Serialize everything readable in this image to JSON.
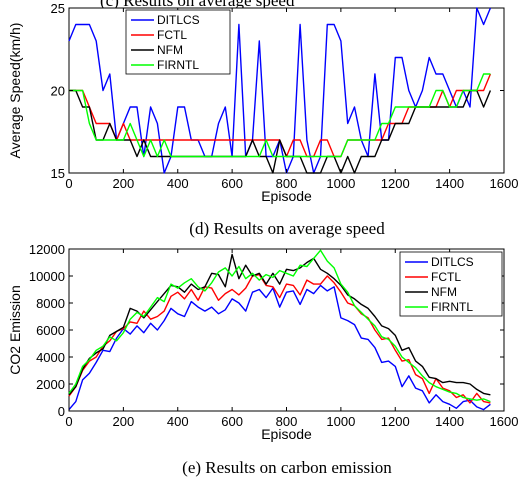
{
  "captions": {
    "top_partial": "(c) Results on average speed",
    "d": "(d) Results on average speed",
    "e": "(e) Results on carbon emission"
  },
  "chart_data": [
    {
      "type": "line",
      "title": "",
      "xlabel": "Episode",
      "ylabel": "Average Speed(km/h)",
      "xlim": [
        0,
        1600
      ],
      "ylim": [
        15,
        25
      ],
      "xticks": [
        0,
        200,
        400,
        600,
        800,
        1000,
        1200,
        1400,
        1600
      ],
      "yticks": [
        15,
        20,
        25
      ],
      "grid": false,
      "legend_position": "top-left",
      "x": [
        0,
        25,
        50,
        75,
        100,
        125,
        150,
        175,
        200,
        225,
        250,
        275,
        300,
        325,
        350,
        375,
        400,
        425,
        450,
        475,
        500,
        525,
        550,
        575,
        600,
        625,
        650,
        675,
        700,
        725,
        750,
        775,
        800,
        825,
        850,
        875,
        900,
        925,
        950,
        975,
        1000,
        1025,
        1050,
        1075,
        1100,
        1125,
        1150,
        1175,
        1200,
        1225,
        1250,
        1275,
        1300,
        1325,
        1350,
        1375,
        1400,
        1425,
        1450,
        1475,
        1500,
        1525,
        1550
      ],
      "series": [
        {
          "name": "DITLCS",
          "color": "#0000ff",
          "values": [
            23,
            24,
            24,
            24,
            23,
            20,
            21,
            17,
            18,
            19,
            19,
            16,
            19,
            18,
            15,
            16,
            19,
            19,
            17,
            17,
            16,
            16,
            18,
            19,
            16,
            24,
            16,
            17,
            23,
            16,
            16,
            17,
            15,
            16,
            24,
            17,
            15,
            16,
            24,
            24,
            23,
            18,
            19,
            17,
            16,
            21,
            17,
            17,
            22,
            22,
            20,
            19,
            20,
            22,
            21,
            21,
            20,
            19,
            20,
            19,
            25,
            24,
            25
          ]
        },
        {
          "name": "FCTL",
          "color": "#ff0000",
          "values": [
            20,
            20,
            20,
            19,
            18,
            18,
            18,
            17,
            18,
            17,
            17,
            17,
            17,
            17,
            17,
            17,
            17,
            17,
            17,
            17,
            17,
            17,
            17,
            17,
            17,
            17,
            17,
            17,
            17,
            17,
            17,
            17,
            16,
            17,
            17,
            16,
            16,
            17,
            17,
            16,
            16,
            17,
            17,
            17,
            17,
            17,
            17,
            18,
            18,
            18,
            19,
            19,
            19,
            19,
            19,
            20,
            19,
            20,
            20,
            20,
            20,
            20,
            21
          ]
        },
        {
          "name": "NFM",
          "color": "#000000",
          "values": [
            20,
            20,
            19,
            19,
            17,
            17,
            18,
            17,
            17,
            17,
            16,
            17,
            16,
            16,
            16,
            16,
            16,
            16,
            16,
            16,
            16,
            16,
            16,
            16,
            16,
            16,
            16,
            17,
            16,
            16,
            15,
            17,
            16,
            16,
            16,
            15,
            15,
            15,
            16,
            16,
            15,
            16,
            15,
            16,
            16,
            16,
            17,
            17,
            18,
            18,
            18,
            19,
            19,
            19,
            19,
            19,
            19,
            19,
            19,
            20,
            20,
            19,
            20
          ]
        },
        {
          "name": "FIRNTL",
          "color": "#00ff00",
          "values": [
            20,
            20,
            20,
            18,
            17,
            17,
            17,
            17,
            17,
            18,
            17,
            16,
            17,
            16,
            17,
            16,
            16,
            16,
            16,
            16,
            16,
            16,
            16,
            16,
            16,
            16,
            16,
            16,
            16,
            17,
            16,
            16,
            16,
            16,
            16,
            16,
            16,
            16,
            16,
            16,
            16,
            17,
            17,
            17,
            17,
            17,
            18,
            18,
            19,
            19,
            19,
            19,
            19,
            19,
            20,
            20,
            19,
            19,
            20,
            20,
            20,
            21,
            21
          ]
        }
      ]
    },
    {
      "type": "line",
      "title": "",
      "xlabel": "Episode",
      "ylabel": "CO2 Emission",
      "xlim": [
        0,
        1600
      ],
      "ylim": [
        0,
        12000
      ],
      "xticks": [
        0,
        200,
        400,
        600,
        800,
        1000,
        1200,
        1400,
        1600
      ],
      "yticks": [
        0,
        2000,
        4000,
        6000,
        8000,
        10000,
        12000
      ],
      "grid": false,
      "legend_position": "top-right",
      "x": [
        0,
        25,
        50,
        75,
        100,
        125,
        150,
        175,
        200,
        225,
        250,
        275,
        300,
        325,
        350,
        375,
        400,
        425,
        450,
        475,
        500,
        525,
        550,
        575,
        600,
        625,
        650,
        675,
        700,
        725,
        750,
        775,
        800,
        825,
        850,
        875,
        900,
        925,
        950,
        975,
        1000,
        1025,
        1050,
        1075,
        1100,
        1125,
        1150,
        1175,
        1200,
        1225,
        1250,
        1275,
        1300,
        1325,
        1350,
        1375,
        1400,
        1425,
        1450,
        1475,
        1500,
        1525,
        1550
      ],
      "series": [
        {
          "name": "DITLCS",
          "color": "#0000ff",
          "values": [
            100,
            700,
            2300,
            2800,
            3600,
            4500,
            4400,
            5400,
            6100,
            5700,
            6300,
            5800,
            6500,
            6000,
            6700,
            7600,
            7200,
            7000,
            8100,
            7700,
            7400,
            7700,
            7200,
            7500,
            8300,
            8000,
            7400,
            8800,
            9000,
            8400,
            9100,
            7700,
            8800,
            8900,
            7900,
            9000,
            8700,
            9300,
            8900,
            9200,
            6900,
            6700,
            6400,
            5400,
            5300,
            4700,
            3600,
            3700,
            3300,
            1800,
            2600,
            1700,
            1500,
            600,
            1200,
            700,
            500,
            200,
            700,
            800,
            300,
            100,
            500
          ]
        },
        {
          "name": "FCTL",
          "color": "#ff0000",
          "values": [
            1100,
            1800,
            3000,
            3700,
            4000,
            4800,
            5200,
            5900,
            6100,
            6600,
            6500,
            7400,
            6800,
            7000,
            7400,
            8500,
            8800,
            8300,
            9000,
            8200,
            9200,
            9100,
            8200,
            8700,
            9000,
            8600,
            9100,
            10000,
            10100,
            9300,
            9200,
            8400,
            9400,
            9300,
            8600,
            9700,
            9400,
            9400,
            10000,
            9500,
            8800,
            8000,
            7800,
            7200,
            6900,
            6000,
            5300,
            5400,
            4500,
            3700,
            3800,
            2700,
            2400,
            1300,
            2400,
            1700,
            1500,
            1000,
            1200,
            600,
            1300,
            700,
            600
          ]
        },
        {
          "name": "NFM",
          "color": "#000000",
          "values": [
            1200,
            1800,
            3100,
            3900,
            4300,
            4600,
            5600,
            5900,
            6200,
            7600,
            7400,
            6900,
            7500,
            8100,
            8700,
            9300,
            9200,
            8800,
            9400,
            9000,
            9200,
            10200,
            10100,
            9200,
            11600,
            9800,
            10800,
            10000,
            10200,
            9400,
            10200,
            9400,
            10500,
            10400,
            10600,
            11000,
            11300,
            10500,
            10200,
            9800,
            9300,
            8600,
            8300,
            7900,
            7600,
            7000,
            6300,
            6100,
            5600,
            4500,
            4700,
            3700,
            3300,
            2500,
            2400,
            2100,
            2200,
            2100,
            2100,
            2000,
            1600,
            1300,
            1200
          ]
        },
        {
          "name": "FIRNTL",
          "color": "#00ff00",
          "values": [
            1300,
            2000,
            3300,
            3800,
            4500,
            4800,
            5500,
            5200,
            5800,
            6800,
            7300,
            7000,
            7700,
            8400,
            8100,
            9400,
            9100,
            9500,
            9800,
            9200,
            8900,
            9500,
            10300,
            10600,
            10000,
            10700,
            9800,
            10200,
            9700,
            10100,
            9900,
            10400,
            10200,
            10000,
            10800,
            10700,
            11300,
            11900,
            11100,
            10600,
            9400,
            8800,
            7800,
            7300,
            6800,
            6300,
            5500,
            5300,
            4800,
            4000,
            3600,
            3200,
            2600,
            2100,
            1800,
            1600,
            1400,
            1300,
            1000,
            900,
            800,
            900,
            700
          ]
        }
      ]
    }
  ]
}
